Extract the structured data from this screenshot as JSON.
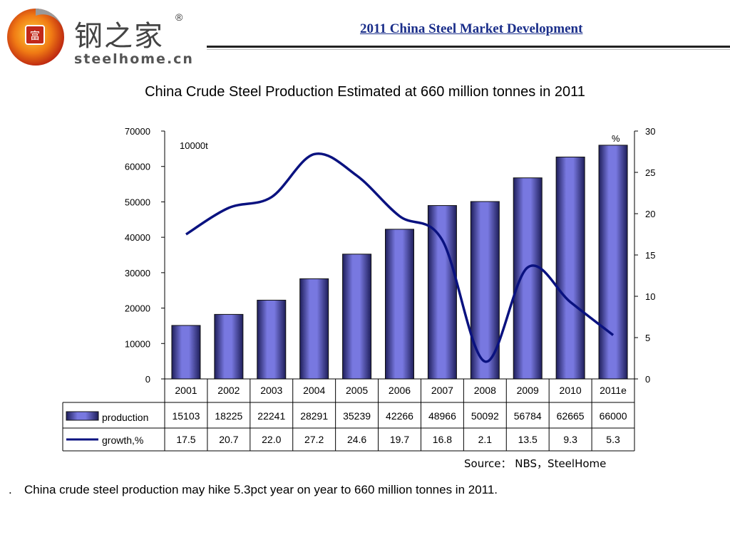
{
  "header": {
    "logo_zh": "钢之家",
    "logo_reg": "®",
    "logo_en": "steelhome.cn",
    "title": "2011 China Steel Market Development"
  },
  "chart_title": "China Crude Steel Production Estimated at 660 million tonnes in 2011",
  "chart_data": {
    "type": "bar",
    "title": "China Crude Steel Production Estimated at 660 million tonnes in 2011",
    "categories": [
      "2001",
      "2002",
      "2003",
      "2004",
      "2005",
      "2006",
      "2007",
      "2008",
      "2009",
      "2010",
      "2011e"
    ],
    "series": [
      {
        "name": "production",
        "type": "bar",
        "axis": "left",
        "values": [
          15103,
          18225,
          22241,
          28291,
          35239,
          42266,
          48966,
          50092,
          56784,
          62665,
          66000
        ],
        "labels": [
          "15103",
          "18225",
          "22241",
          "28291",
          "35239",
          "42266",
          "48966",
          "50092",
          "56784",
          "62665",
          "66000"
        ]
      },
      {
        "name": "growth,%",
        "type": "line",
        "axis": "right",
        "values": [
          17.5,
          20.7,
          22.0,
          27.2,
          24.6,
          19.7,
          16.8,
          2.1,
          13.5,
          9.3,
          5.3
        ],
        "labels": [
          "17.5",
          "20.7",
          "22.0",
          "27.2",
          "24.6",
          "19.7",
          "16.8",
          "2.1",
          "13.5",
          "9.3",
          "5.3"
        ]
      }
    ],
    "y_left": {
      "min": 0,
      "max": 70000,
      "ticks": [
        "0",
        "10000",
        "20000",
        "30000",
        "40000",
        "50000",
        "60000",
        "70000"
      ],
      "unit": "10000t"
    },
    "y_right": {
      "min": 0,
      "max": 30,
      "ticks": [
        "0",
        "5",
        "10",
        "15",
        "20",
        "25",
        "30"
      ],
      "unit": "%"
    },
    "data_table": true,
    "colors": {
      "bar": "#7878e0",
      "bar_dark": "#1e1e5a",
      "line": "#0a1280"
    }
  },
  "source": "Source： NBS，SteelHome",
  "bullet": ".",
  "note": "China crude steel production may hike 5.3pct year on year to 660 million tonnes in 2011."
}
